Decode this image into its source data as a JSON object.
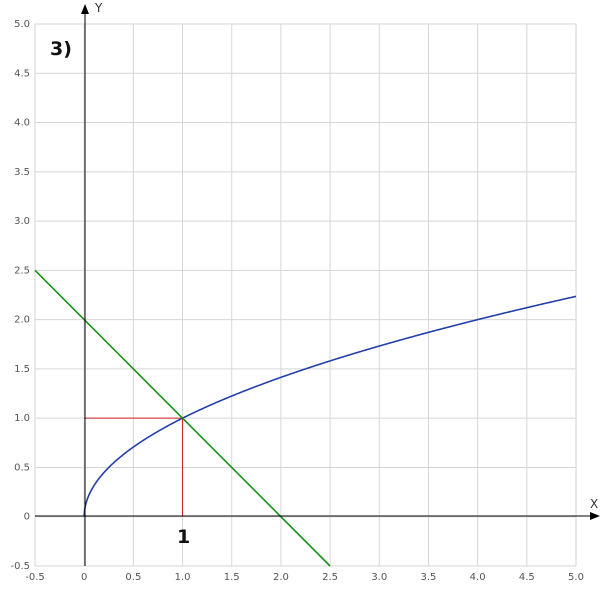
{
  "chart_data": {
    "type": "line",
    "title": "",
    "xlabel": "X",
    "ylabel": "Y",
    "xlim": [
      -0.5,
      5.0
    ],
    "ylim": [
      -0.5,
      5.0
    ],
    "grid": true,
    "x_ticks": [
      -0.5,
      0,
      0.5,
      1.0,
      1.5,
      2.0,
      2.5,
      3.0,
      3.5,
      4.0,
      4.5,
      5.0
    ],
    "x_tick_labels": [
      "-0.5",
      "0",
      "0.5",
      "1.0",
      "1.5",
      "2.0",
      "2.5",
      "3.0",
      "3.5",
      "4.0",
      "4.5",
      "5.0"
    ],
    "y_ticks": [
      -0.5,
      0,
      0.5,
      1.0,
      1.5,
      2.0,
      2.5,
      3.0,
      3.5,
      4.0,
      4.5,
      5.0
    ],
    "y_tick_labels": [
      "-0.5",
      "0",
      "0.5",
      "1.0",
      "1.5",
      "2.0",
      "2.5",
      "3.0",
      "3.5",
      "4.0",
      "4.5",
      "5.0"
    ],
    "series": [
      {
        "color": "#2440a8",
        "x": [
          0,
          0.01,
          0.05,
          0.1,
          0.2,
          0.3,
          0.5,
          0.75,
          1.0,
          1.5,
          2.0,
          2.5,
          3.0,
          3.5,
          4.0,
          4.5,
          5.0
        ],
        "y": [
          0,
          0.1,
          0.224,
          0.316,
          0.447,
          0.548,
          0.707,
          0.866,
          1.0,
          1.225,
          1.414,
          1.581,
          1.732,
          1.871,
          2.0,
          2.121,
          2.236
        ]
      },
      {
        "color": "#1a8f1a",
        "x": [
          -0.5,
          2.5
        ],
        "y": [
          2.5,
          -0.5
        ]
      }
    ],
    "guides": {
      "color": "#cc2222",
      "point": [
        1.0,
        1.0
      ]
    },
    "annotations": [
      {
        "text": "3)"
      },
      {
        "text": "1"
      }
    ]
  }
}
